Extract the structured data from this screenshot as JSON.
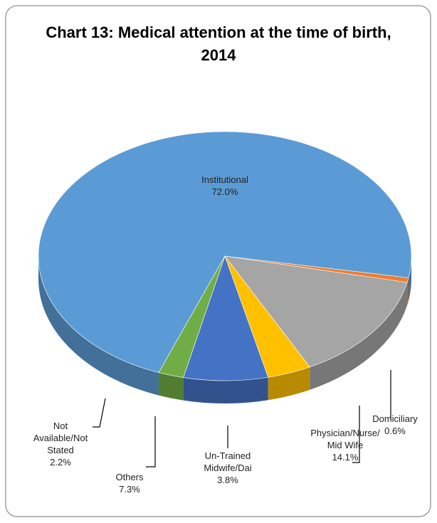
{
  "chart_data": {
    "type": "pie3d",
    "title": "Chart 13: Medical attention at the time of birth, 2014",
    "categories": [
      "Institutional",
      "Domiciliary",
      "Physician/Nurse/ Mid Wife",
      "Un-Trained Midwife/Dai",
      "Others",
      "Not Available/Not Stated"
    ],
    "values": [
      72.0,
      0.6,
      14.1,
      3.8,
      7.3,
      2.2
    ],
    "value_labels": [
      "72.0%",
      "0.6%",
      "14.1%",
      "3.8%",
      "7.3%",
      "2.2%"
    ],
    "colors": [
      "#5b9bd5",
      "#ed7d31",
      "#a5a5a5",
      "#ffc000",
      "#4472c4",
      "#70ad47"
    ]
  }
}
